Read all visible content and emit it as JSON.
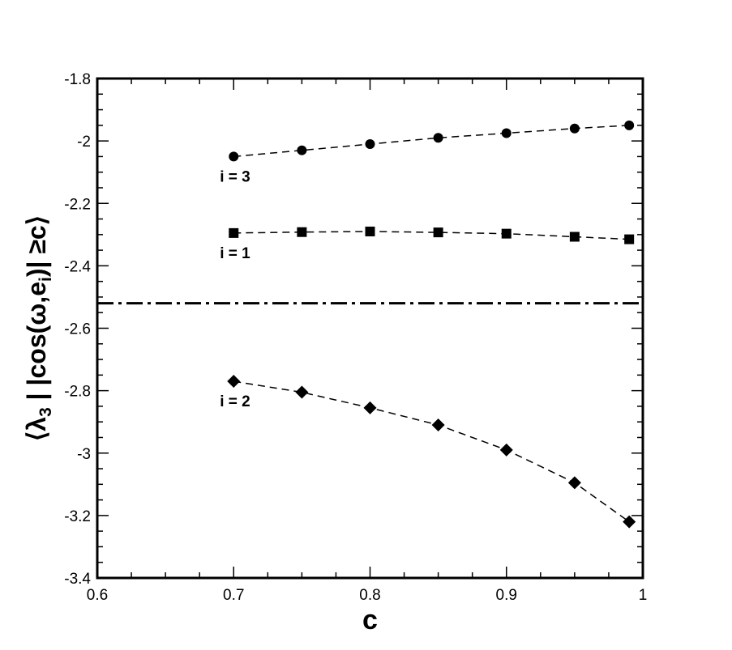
{
  "chart_data": {
    "type": "line",
    "xlabel": "c",
    "ylabel": "⟨λ3 | |cos(ω,ei)| ≥c⟩",
    "ylabel_parts": {
      "open": "⟨",
      "lambda": "λ",
      "lambda_sub": "3",
      "bar": " | |cos(ω,e",
      "e_sub": "i",
      "close": ")| ≥c⟩"
    },
    "xlim": [
      0.6,
      1.0
    ],
    "ylim": [
      -3.4,
      -1.8
    ],
    "xticks": [
      0.6,
      0.7,
      0.8,
      0.9,
      1.0
    ],
    "xtick_labels": [
      "0.6",
      "0.7",
      "0.8",
      "0.9",
      "1"
    ],
    "yticks": [
      -1.8,
      -2.0,
      -2.2,
      -2.4,
      -2.6,
      -2.8,
      -3.0,
      -3.2,
      -3.4
    ],
    "ytick_labels": [
      "-1.8",
      "-2",
      "-2.2",
      "-2.4",
      "-2.6",
      "-2.8",
      "-3",
      "-3.2",
      "-3.4"
    ],
    "grid": false,
    "x": [
      0.7,
      0.75,
      0.8,
      0.85,
      0.9,
      0.95,
      0.99
    ],
    "series": [
      {
        "name": "i = 3",
        "marker": "circle",
        "values": [
          -2.05,
          -2.03,
          -2.01,
          -1.99,
          -1.975,
          -1.96,
          -1.95
        ]
      },
      {
        "name": "i = 1",
        "marker": "square",
        "values": [
          -2.295,
          -2.292,
          -2.29,
          -2.293,
          -2.297,
          -2.307,
          -2.315
        ]
      },
      {
        "name": "i = 2",
        "marker": "diamond",
        "values": [
          -2.77,
          -2.805,
          -2.855,
          -2.91,
          -2.99,
          -3.095,
          -3.22
        ]
      }
    ],
    "reference_line": {
      "y": -2.52,
      "style": "dash-dot"
    },
    "line_color": "#000000"
  }
}
